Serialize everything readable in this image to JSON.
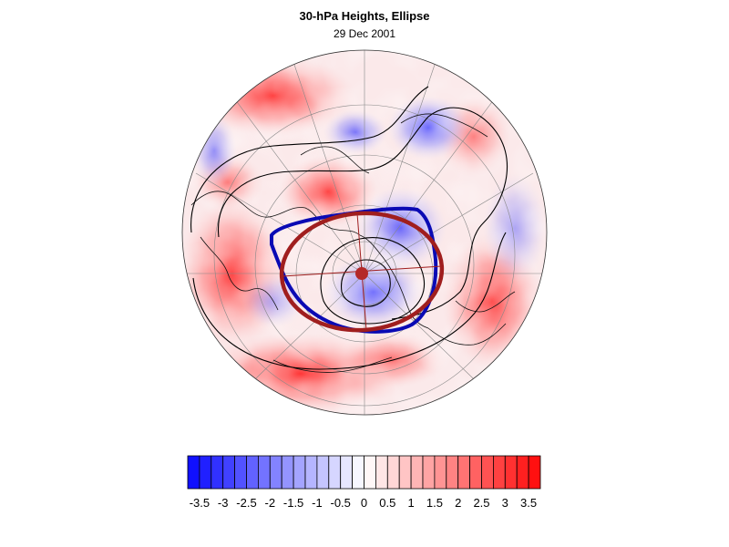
{
  "header": {
    "title": "30-hPa Heights, Ellipse",
    "subtitle": "29 Dec 2001"
  },
  "map": {
    "projection": "orthographic-polar",
    "hemisphere": "northern",
    "field": "30-hPa height anomaly",
    "overlays": [
      "contour-lines",
      "coastlines",
      "graticule",
      "fitted-ellipse",
      "ellipse-center",
      "vortex-edge-contour"
    ],
    "colors": {
      "negative": "#1010ff",
      "positive": "#ff1010",
      "neutral": "#ffffff",
      "ellipse": "#a01e1e",
      "vortex_edge": "#0a0ab4",
      "center_marker": "#b42828"
    }
  },
  "colorbar": {
    "min": -3.75,
    "max": 3.75,
    "step": 0.25,
    "tick_labels": [
      "-3.5",
      "-3",
      "-2.5",
      "-2",
      "-1.5",
      "-1",
      "-0.5",
      "0",
      "0.5",
      "1",
      "1.5",
      "2",
      "2.5",
      "3",
      "3.5"
    ]
  }
}
